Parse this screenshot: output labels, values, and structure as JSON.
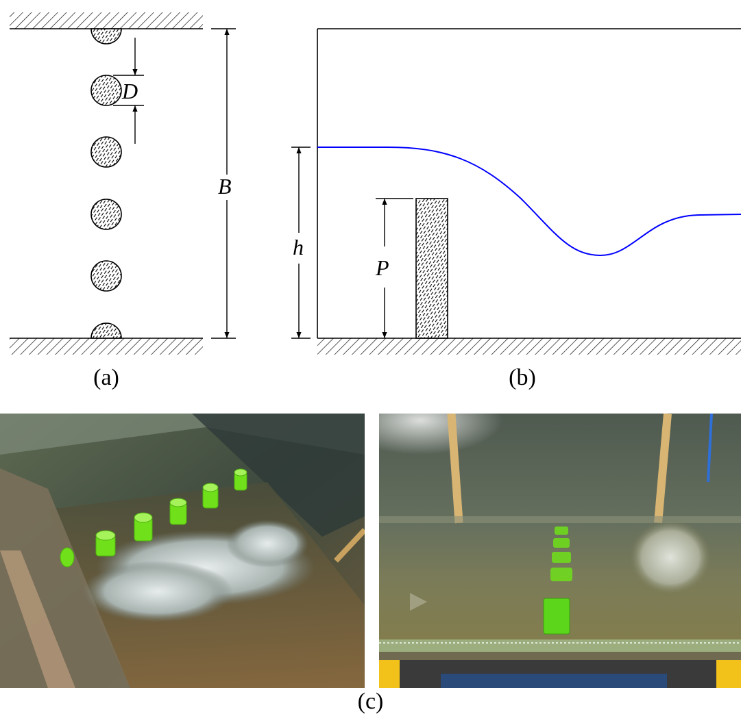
{
  "panel_a": {
    "caption": "(a)",
    "symbol_diameter": "D",
    "symbol_width": "B"
  },
  "panel_b": {
    "caption": "(b)",
    "symbol_head": "h",
    "symbol_weir_height": "P",
    "water_surface_color": "#0000ff"
  },
  "panel_c": {
    "caption": "(c)"
  },
  "colors": {
    "line": "#000000",
    "water_line": "#0000ff",
    "cylinder_green": "#6fe01a"
  }
}
